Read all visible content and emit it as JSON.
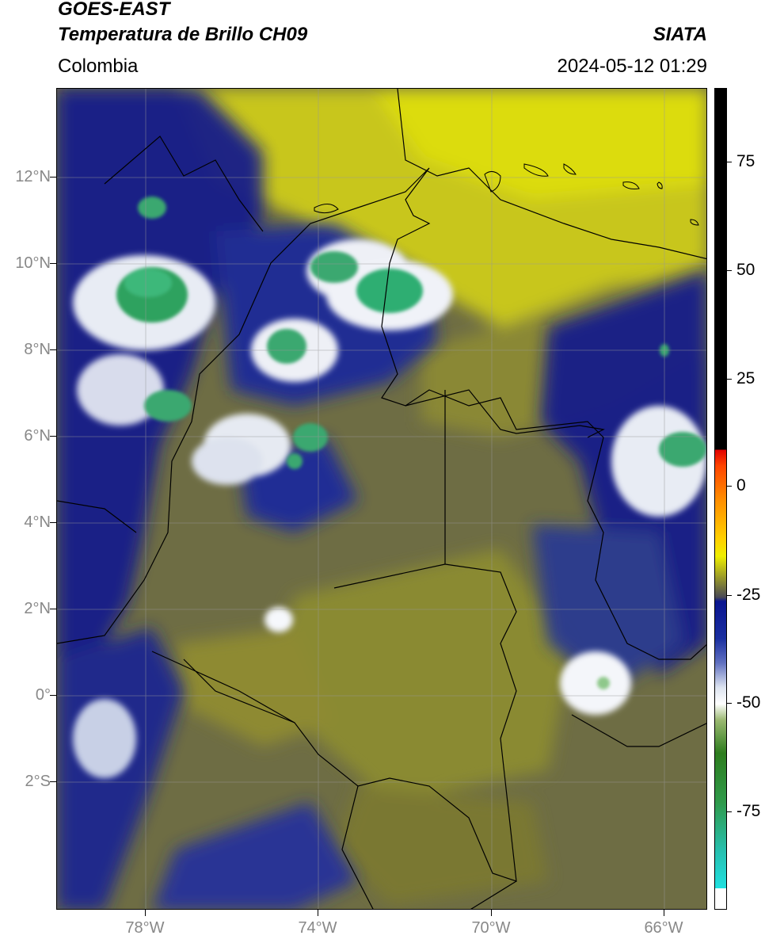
{
  "header": {
    "satellite": "GOES-EAST",
    "product": "Temperatura de Brillo CH09",
    "region": "Colombia",
    "agency": "SIATA",
    "datetime": "2024-05-12 01:29"
  },
  "map": {
    "lat_labels": [
      "12°N",
      "10°N",
      "8°N",
      "6°N",
      "4°N",
      "2°N",
      "0°",
      "2°S"
    ],
    "lon_labels": [
      "78°W",
      "74°W",
      "70°W",
      "66°W"
    ],
    "extent": {
      "lon_min": -80.0,
      "lon_max": -65.0,
      "lat_min": -5.0,
      "lat_max": 14.0
    },
    "colors": {
      "warm_dry": "#c9c81c",
      "mid": "#7f7d3a",
      "cold_blue": "#121a8a",
      "cloud_white": "#ffffff",
      "deep_convection": "#2fa56a"
    }
  },
  "colorbar": {
    "labels": [
      "75",
      "50",
      "25",
      "0",
      "-25",
      "-50",
      "-75"
    ],
    "units": ""
  }
}
